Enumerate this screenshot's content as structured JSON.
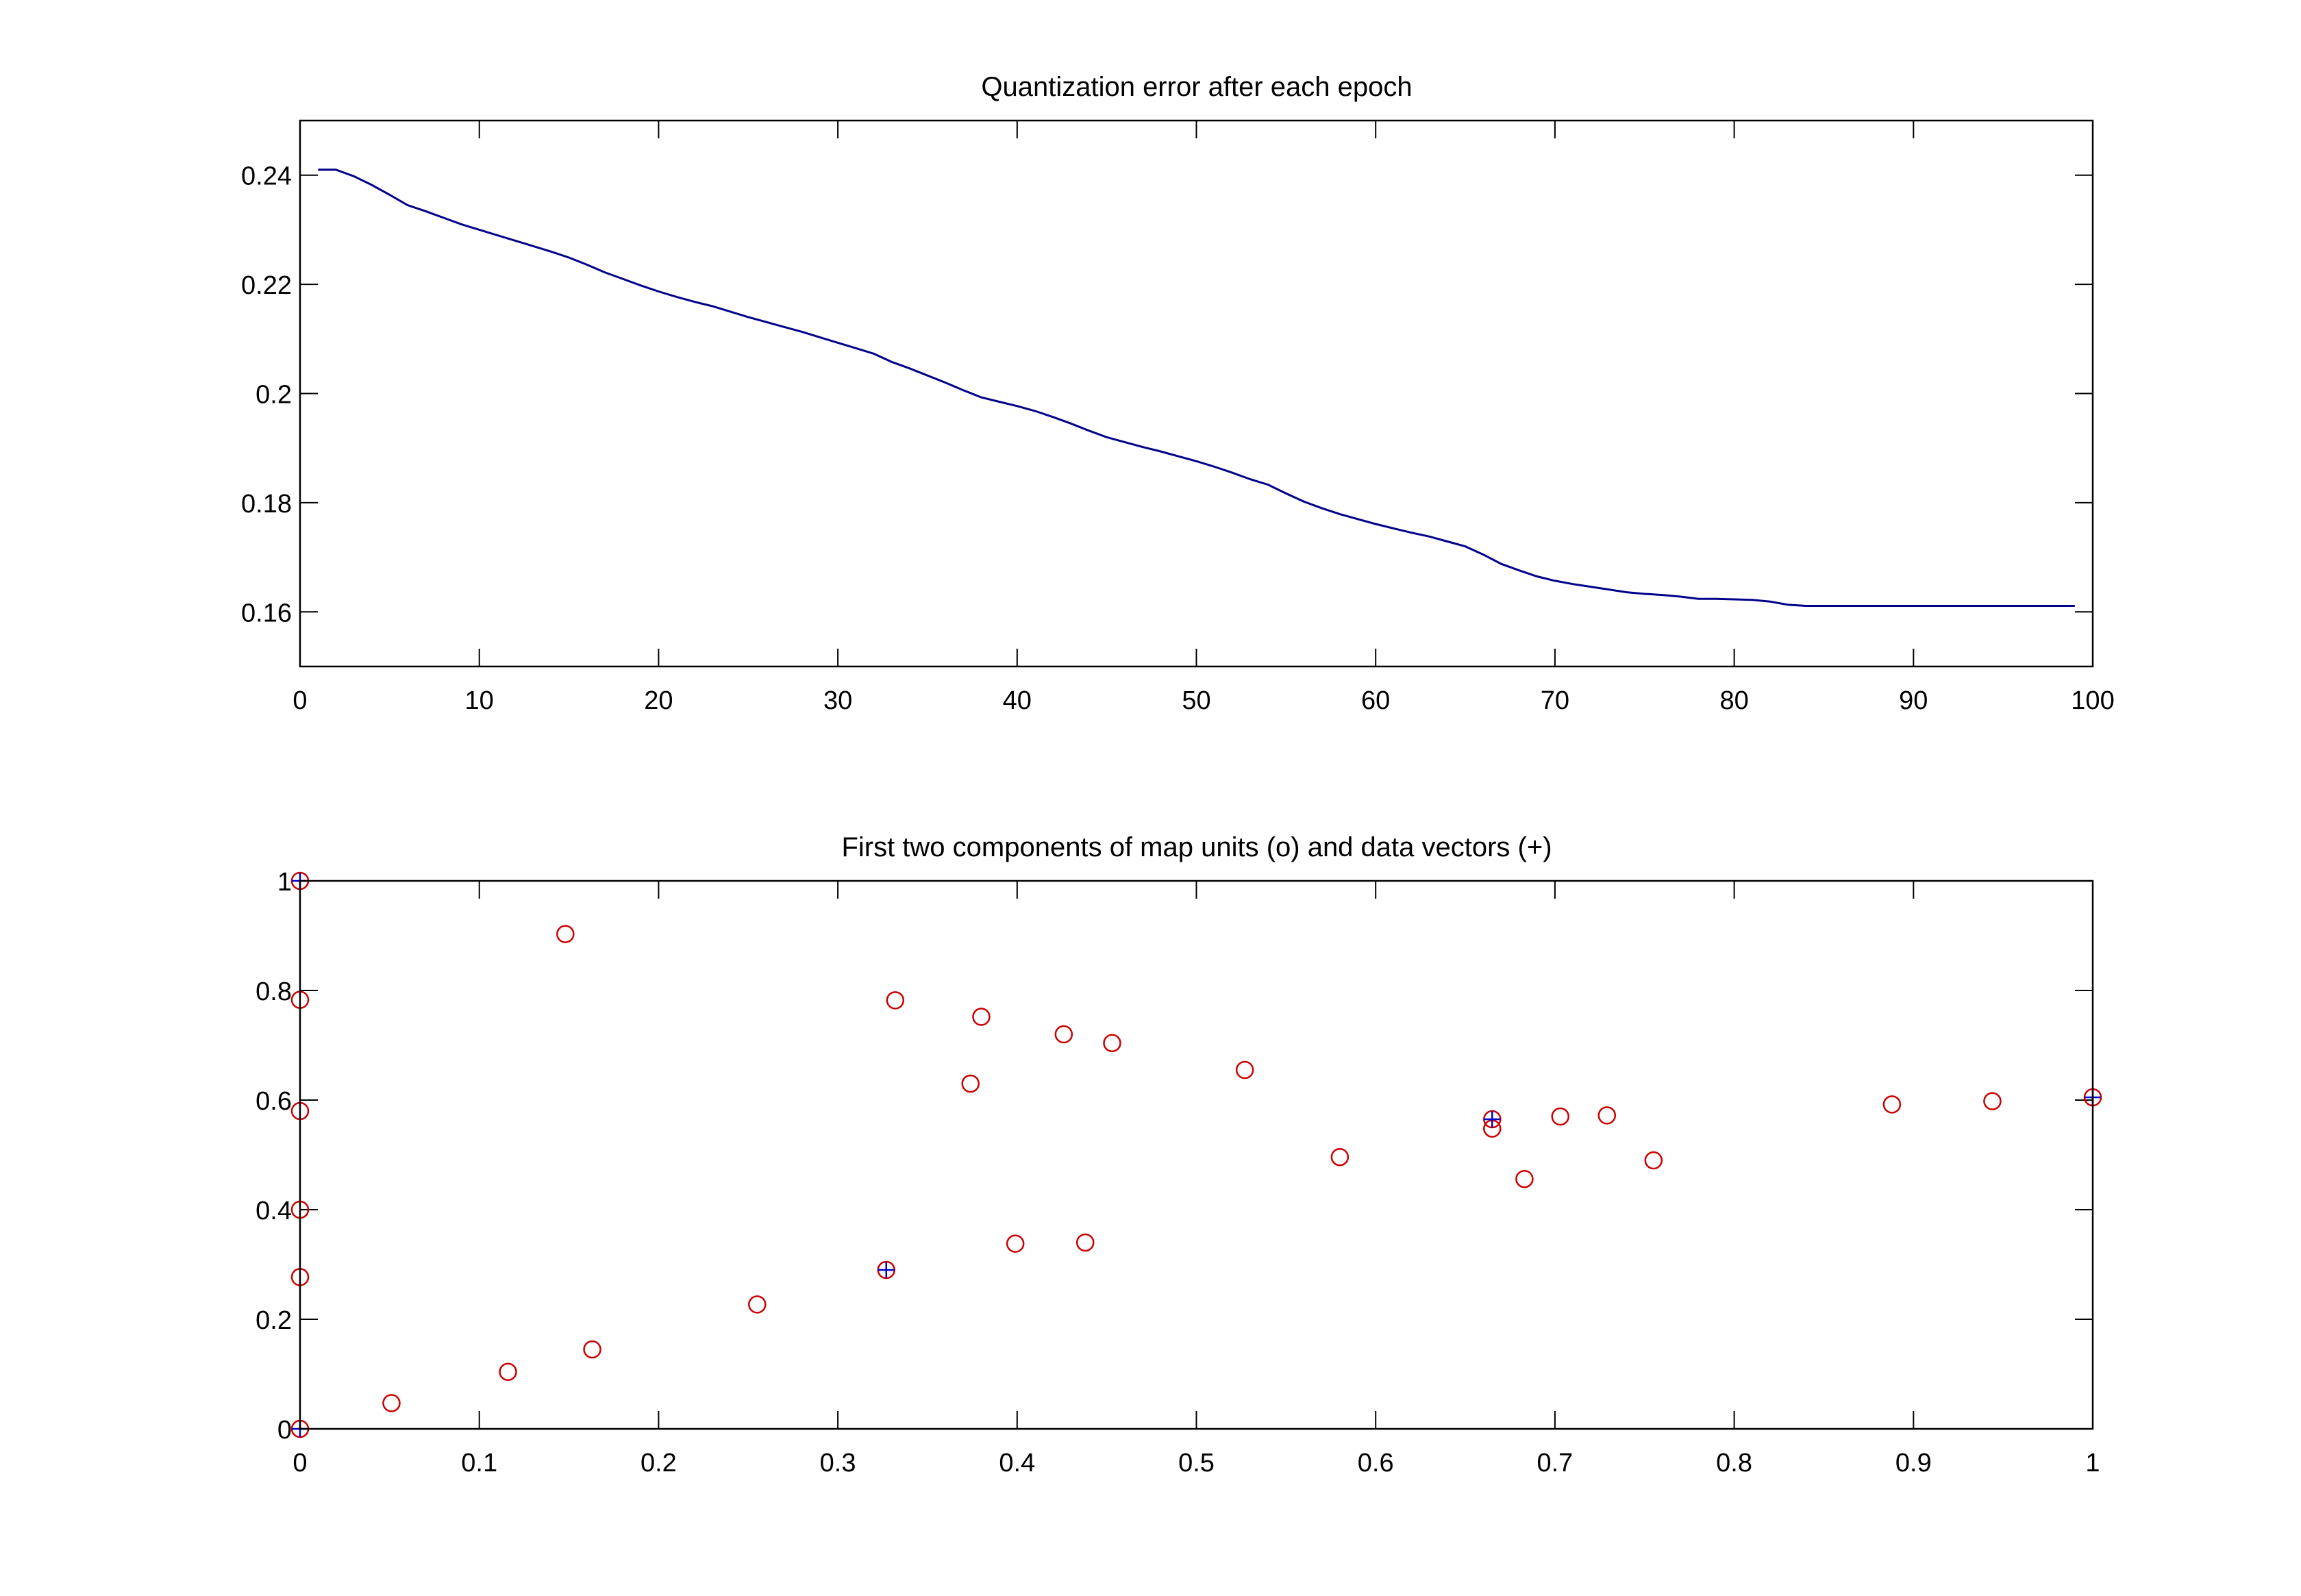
{
  "chart_data": [
    {
      "type": "line",
      "title": "Quantization error after each epoch",
      "xlabel": "",
      "ylabel": "",
      "xlim": [
        0,
        100
      ],
      "ylim": [
        0.15,
        0.25
      ],
      "xticks": [
        "0",
        "10",
        "20",
        "30",
        "40",
        "50",
        "60",
        "70",
        "80",
        "90",
        "100"
      ],
      "yticks": [
        "0.16",
        "0.18",
        "0.2",
        "0.22",
        "0.24"
      ],
      "grid": false,
      "series": [
        {
          "color": "#00008b",
          "x": [
            1,
            2,
            3,
            4,
            5,
            6,
            7,
            8,
            9,
            10,
            11,
            12,
            13,
            14,
            15,
            16,
            17,
            18,
            19,
            20,
            21,
            22,
            23,
            24,
            25,
            26,
            27,
            28,
            29,
            30,
            31,
            32,
            33,
            34,
            35,
            36,
            37,
            38,
            39,
            40,
            41,
            42,
            43,
            44,
            45,
            46,
            47,
            48,
            49,
            50,
            51,
            52,
            53,
            54,
            55,
            56,
            57,
            58,
            59,
            60,
            61,
            62,
            63,
            64,
            65,
            66,
            67,
            68,
            69,
            70,
            71,
            72,
            73,
            74,
            75,
            76,
            77,
            78,
            79,
            80,
            81,
            82,
            83,
            84,
            85,
            86,
            87,
            88,
            89,
            90,
            91,
            92,
            93,
            94,
            95,
            96,
            97,
            98,
            99
          ],
          "values": [
            0.241,
            0.241,
            0.2398,
            0.2382,
            0.2364,
            0.2345,
            0.2334,
            0.2322,
            0.231,
            0.23,
            0.229,
            0.228,
            0.227,
            0.226,
            0.2249,
            0.2236,
            0.2222,
            0.221,
            0.2198,
            0.2187,
            0.2177,
            0.2168,
            0.216,
            0.215,
            0.214,
            0.2131,
            0.2122,
            0.2113,
            0.2103,
            0.2093,
            0.2083,
            0.2073,
            0.2058,
            0.2046,
            0.2033,
            0.202,
            0.2006,
            0.1993,
            0.1985,
            0.1977,
            0.1968,
            0.1957,
            0.1945,
            0.1932,
            0.192,
            0.1911,
            0.1902,
            0.1894,
            0.1885,
            0.1876,
            0.1866,
            0.1855,
            0.1843,
            0.1833,
            0.1817,
            0.1802,
            0.179,
            0.1779,
            0.177,
            0.1761,
            0.1753,
            0.1745,
            0.1738,
            0.1729,
            0.172,
            0.1705,
            0.1688,
            0.1676,
            0.1665,
            0.1657,
            0.1651,
            0.1646,
            0.1641,
            0.1636,
            0.1633,
            0.1631,
            0.1628,
            0.1624,
            0.1624,
            0.1623,
            0.1622,
            0.1619,
            0.1613,
            0.1611,
            0.1611,
            0.1611,
            0.1611,
            0.1611,
            0.1611,
            0.1611,
            0.1611,
            0.1611,
            0.1611,
            0.1611,
            0.1611,
            0.1611,
            0.1611,
            0.1611,
            0.1611
          ]
        }
      ]
    },
    {
      "type": "scatter",
      "title": "First two components of map units (o) and data vectors (+)",
      "xlabel": "",
      "ylabel": "",
      "xlim": [
        0,
        1
      ],
      "ylim": [
        0,
        1
      ],
      "xticks": [
        "0",
        "0.1",
        "0.2",
        "0.3",
        "0.4",
        "0.5",
        "0.6",
        "0.7",
        "0.8",
        "0.9",
        "1"
      ],
      "yticks": [
        "0",
        "0.2",
        "0.4",
        "0.6",
        "0.8",
        "1"
      ],
      "grid": false,
      "series": [
        {
          "marker": "o",
          "color": "#cc0000",
          "points": [
            [
              0,
              1
            ],
            [
              0.148,
              0.903
            ],
            [
              0,
              0.783
            ],
            [
              0.332,
              0.782
            ],
            [
              0.38,
              0.752
            ],
            [
              0.426,
              0.72
            ],
            [
              0.453,
              0.704
            ],
            [
              0.527,
              0.655
            ],
            [
              0.374,
              0.63
            ],
            [
              0,
              0.58
            ],
            [
              1,
              0.605
            ],
            [
              0.944,
              0.598
            ],
            [
              0.888,
              0.592
            ],
            [
              0.729,
              0.572
            ],
            [
              0.703,
              0.57
            ],
            [
              0.665,
              0.565
            ],
            [
              0.665,
              0.548
            ],
            [
              0.58,
              0.496
            ],
            [
              0.755,
              0.49
            ],
            [
              0.683,
              0.456
            ],
            [
              0,
              0.4
            ],
            [
              0.399,
              0.338
            ],
            [
              0.438,
              0.34
            ],
            [
              0.327,
              0.29
            ],
            [
              0,
              0.277
            ],
            [
              0.255,
              0.227
            ],
            [
              0.163,
              0.145
            ],
            [
              0.116,
              0.104
            ],
            [
              0.051,
              0.047
            ],
            [
              0,
              0
            ]
          ]
        },
        {
          "marker": "+",
          "color": "#0000cc",
          "points": [
            [
              0,
              1
            ],
            [
              0.327,
              0.29
            ],
            [
              0.665,
              0.565
            ],
            [
              1,
              0.605
            ],
            [
              0,
              0
            ]
          ]
        }
      ]
    }
  ]
}
